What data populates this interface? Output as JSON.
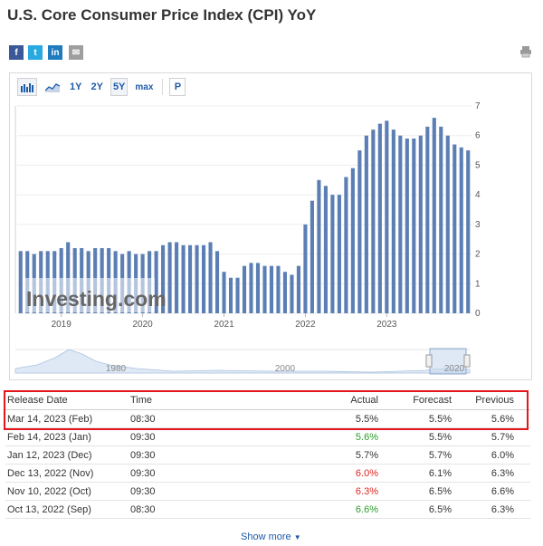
{
  "title": "U.S. Core Consumer Price Index (CPI) YoY",
  "share": {
    "facebook": "f",
    "twitter": "t",
    "linkedin": "in",
    "email": "✉"
  },
  "toolbar": {
    "range_1y": "1Y",
    "range_2y": "2Y",
    "range_5y": "5Y",
    "range_max": "max",
    "p_label": "P"
  },
  "chart_data": [
    {
      "type": "bar",
      "title": "",
      "xlabel": "",
      "ylabel": "",
      "ylim": [
        0,
        7
      ],
      "yticks": [
        "0",
        "1",
        "2",
        "3",
        "4",
        "5",
        "6",
        "7"
      ],
      "xtick_labels": [
        "2019",
        "2020",
        "2021",
        "2022",
        "2023"
      ],
      "watermark": "Investing.com",
      "values": [
        2.1,
        2.1,
        2.0,
        2.1,
        2.1,
        2.1,
        2.2,
        2.4,
        2.2,
        2.2,
        2.1,
        2.2,
        2.2,
        2.2,
        2.1,
        2.0,
        2.1,
        2.0,
        2.0,
        2.1,
        2.1,
        2.3,
        2.4,
        2.4,
        2.3,
        2.3,
        2.3,
        2.3,
        2.4,
        2.1,
        1.4,
        1.2,
        1.2,
        1.6,
        1.7,
        1.7,
        1.6,
        1.6,
        1.6,
        1.4,
        1.3,
        1.6,
        3.0,
        3.8,
        4.5,
        4.3,
        4.0,
        4.0,
        4.6,
        4.9,
        5.5,
        6.0,
        6.2,
        6.4,
        6.5,
        6.2,
        6.0,
        5.9,
        5.9,
        6.0,
        6.3,
        6.6,
        6.3,
        6.0,
        5.7,
        5.6,
        5.5
      ],
      "color": "#5b7fb4"
    },
    {
      "type": "area",
      "role": "navigator",
      "xtick_labels": [
        "1980",
        "2000",
        "2020"
      ]
    }
  ],
  "table": {
    "headers": {
      "date": "Release Date",
      "time": "Time",
      "actual": "Actual",
      "forecast": "Forecast",
      "previous": "Previous"
    },
    "rows": [
      {
        "date": "Mar 14, 2023 (Feb)",
        "time": "08:30",
        "actual": "5.5%",
        "forecast": "5.5%",
        "previous": "5.6%",
        "actual_status": "neutral"
      },
      {
        "date": "Feb 14, 2023 (Jan)",
        "time": "09:30",
        "actual": "5.6%",
        "forecast": "5.5%",
        "previous": "5.7%",
        "actual_status": "green"
      },
      {
        "date": "Jan 12, 2023 (Dec)",
        "time": "09:30",
        "actual": "5.7%",
        "forecast": "5.7%",
        "previous": "6.0%",
        "actual_status": "neutral"
      },
      {
        "date": "Dec 13, 2022 (Nov)",
        "time": "09:30",
        "actual": "6.0%",
        "forecast": "6.1%",
        "previous": "6.3%",
        "actual_status": "red"
      },
      {
        "date": "Nov 10, 2022 (Oct)",
        "time": "09:30",
        "actual": "6.3%",
        "forecast": "6.5%",
        "previous": "6.6%",
        "actual_status": "red"
      },
      {
        "date": "Oct 13, 2022 (Sep)",
        "time": "08:30",
        "actual": "6.6%",
        "forecast": "6.5%",
        "previous": "6.3%",
        "actual_status": "green"
      }
    ]
  },
  "show_more": "Show more"
}
